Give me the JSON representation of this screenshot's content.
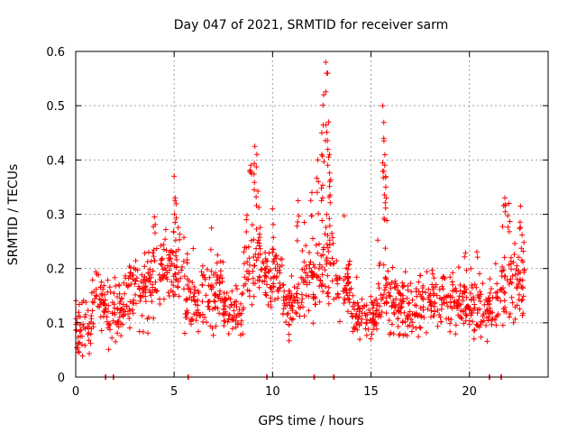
{
  "chart_data": {
    "type": "scatter",
    "title": "Day 047 of 2021, SRMTID for receiver sarm",
    "xlabel": "GPS time / hours",
    "ylabel": "SRMTID / TECUs",
    "xlim": [
      0,
      24
    ],
    "ylim": [
      0,
      0.6
    ],
    "xticks": [
      0,
      5,
      10,
      15,
      20
    ],
    "xtick_labels": [
      "0",
      "5",
      "10",
      "15",
      "20"
    ],
    "yticks": [
      0,
      0.1,
      0.2,
      0.3,
      0.4,
      0.5,
      0.6
    ],
    "ytick_labels": [
      "0",
      "0.1",
      "0.2",
      "0.3",
      "0.4",
      "0.5",
      "0.6"
    ],
    "grid": true,
    "marker": "+",
    "color": "#ff0000",
    "series": [
      {
        "name": "SRMTID",
        "segments": [
          {
            "t0": 0.0,
            "t1": 0.8,
            "base": 0.09,
            "spread": 0.04
          },
          {
            "t0": 0.8,
            "t1": 1.5,
            "base": 0.14,
            "spread": 0.05
          },
          {
            "t0": 1.5,
            "t1": 2.5,
            "base": 0.12,
            "spread": 0.05
          },
          {
            "t0": 2.5,
            "t1": 3.5,
            "base": 0.15,
            "spread": 0.05
          },
          {
            "t0": 3.5,
            "t1": 4.3,
            "base": 0.17,
            "spread": 0.06
          },
          {
            "t0": 4.3,
            "t1": 5.5,
            "base": 0.2,
            "spread": 0.06
          },
          {
            "t0": 5.5,
            "t1": 6.5,
            "base": 0.14,
            "spread": 0.05
          },
          {
            "t0": 6.5,
            "t1": 7.5,
            "base": 0.16,
            "spread": 0.06
          },
          {
            "t0": 7.5,
            "t1": 8.5,
            "base": 0.12,
            "spread": 0.04
          },
          {
            "t0": 8.5,
            "t1": 9.5,
            "base": 0.22,
            "spread": 0.07
          },
          {
            "t0": 9.5,
            "t1": 10.5,
            "base": 0.18,
            "spread": 0.06
          },
          {
            "t0": 10.5,
            "t1": 11.5,
            "base": 0.13,
            "spread": 0.05
          },
          {
            "t0": 11.5,
            "t1": 12.5,
            "base": 0.18,
            "spread": 0.06
          },
          {
            "t0": 12.5,
            "t1": 13.2,
            "base": 0.22,
            "spread": 0.08
          },
          {
            "t0": 13.2,
            "t1": 14.0,
            "base": 0.17,
            "spread": 0.05
          },
          {
            "t0": 14.0,
            "t1": 15.3,
            "base": 0.11,
            "spread": 0.04
          },
          {
            "t0": 15.3,
            "t1": 16.0,
            "base": 0.16,
            "spread": 0.06
          },
          {
            "t0": 16.0,
            "t1": 18.0,
            "base": 0.13,
            "spread": 0.05
          },
          {
            "t0": 18.0,
            "t1": 20.0,
            "base": 0.14,
            "spread": 0.05
          },
          {
            "t0": 20.0,
            "t1": 21.5,
            "base": 0.13,
            "spread": 0.05
          },
          {
            "t0": 21.5,
            "t1": 22.8,
            "base": 0.17,
            "spread": 0.06
          }
        ],
        "peaks": [
          {
            "x": 4.0,
            "y": 0.295
          },
          {
            "x": 5.0,
            "y": 0.37
          },
          {
            "x": 5.05,
            "y": 0.33
          },
          {
            "x": 8.9,
            "y": 0.39
          },
          {
            "x": 9.1,
            "y": 0.425
          },
          {
            "x": 9.2,
            "y": 0.41
          },
          {
            "x": 10.0,
            "y": 0.31
          },
          {
            "x": 11.3,
            "y": 0.325
          },
          {
            "x": 12.0,
            "y": 0.34
          },
          {
            "x": 12.3,
            "y": 0.4
          },
          {
            "x": 12.5,
            "y": 0.45
          },
          {
            "x": 12.6,
            "y": 0.52
          },
          {
            "x": 12.7,
            "y": 0.58
          },
          {
            "x": 12.8,
            "y": 0.56
          },
          {
            "x": 12.85,
            "y": 0.47
          },
          {
            "x": 12.9,
            "y": 0.41
          },
          {
            "x": 15.6,
            "y": 0.5
          },
          {
            "x": 15.65,
            "y": 0.44
          },
          {
            "x": 15.7,
            "y": 0.39
          },
          {
            "x": 15.75,
            "y": 0.35
          },
          {
            "x": 21.8,
            "y": 0.33
          },
          {
            "x": 22.0,
            "y": 0.32
          },
          {
            "x": 22.6,
            "y": 0.315
          }
        ],
        "zero_markers": [
          1.5,
          1.9,
          5.7,
          9.7,
          12.1,
          13.1,
          21.0,
          21.6
        ]
      }
    ]
  }
}
